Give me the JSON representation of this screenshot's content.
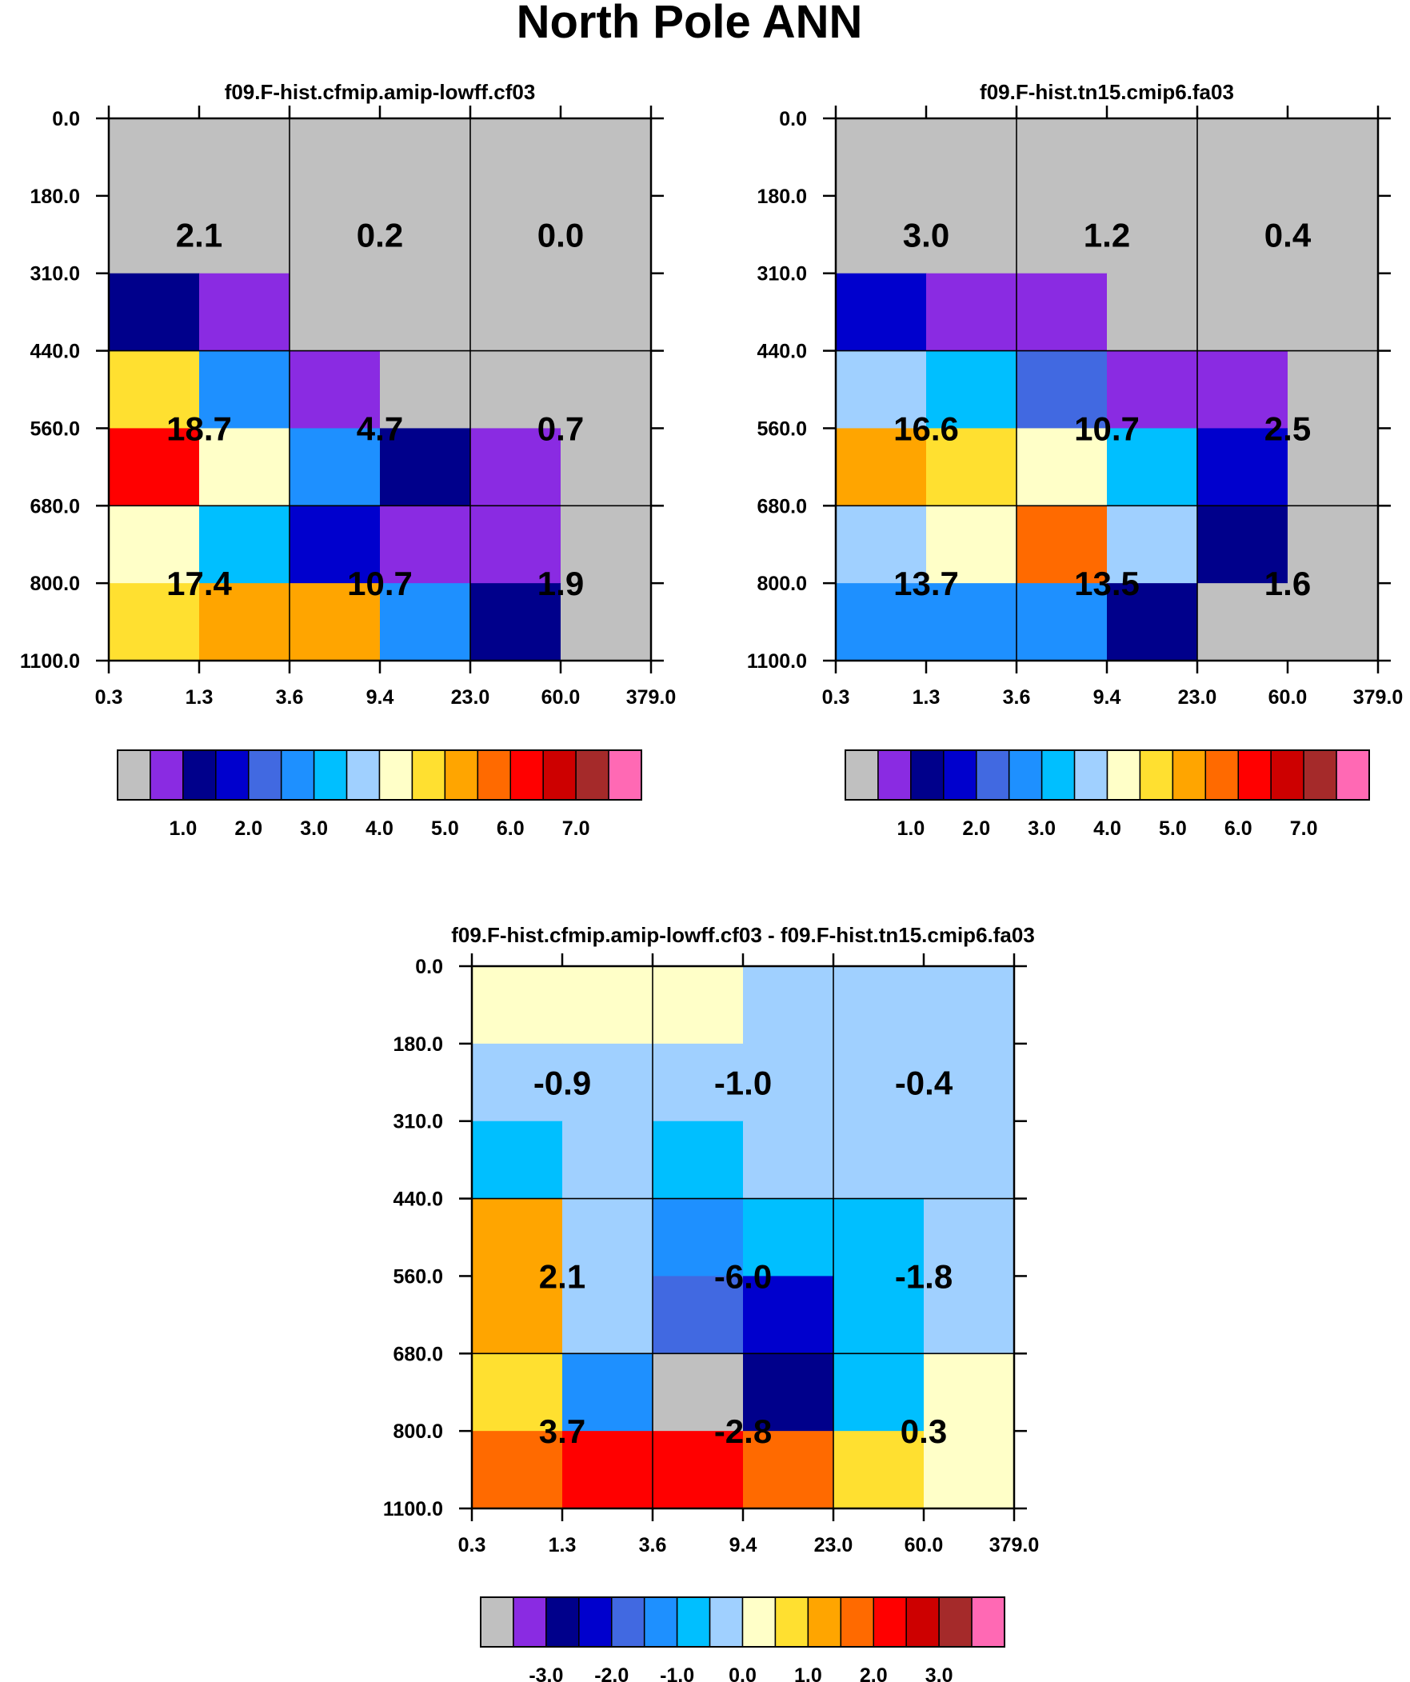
{
  "title": "North Pole ANN",
  "colors": [
    "#c0c0c0",
    "#8a2be2",
    "#00008b",
    "#0000cd",
    "#4169e1",
    "#1e90ff",
    "#00bfff",
    "#a0d0ff",
    "#ffffc8",
    "#ffe030",
    "#ffa500",
    "#ff6a00",
    "#ff0000",
    "#cd0000",
    "#a52a2a",
    "#ff69b4"
  ],
  "chart_data": [
    {
      "type": "heatmap",
      "title": "f09.F-hist.cfmip.amip-lowff.cf03",
      "x_ticks": [
        "0.3",
        "1.3",
        "3.6",
        "9.4",
        "23.0",
        "60.0",
        "379.0"
      ],
      "y_ticks": [
        "0.0",
        "180.0",
        "310.0",
        "440.0",
        "560.0",
        "680.0",
        "800.0",
        "1100.0"
      ],
      "cell_color_index": [
        [
          0,
          0,
          0,
          0,
          0,
          0
        ],
        [
          0,
          0,
          0,
          0,
          0,
          0
        ],
        [
          2,
          1,
          0,
          0,
          0,
          0
        ],
        [
          9,
          5,
          1,
          0,
          0,
          0
        ],
        [
          12,
          8,
          5,
          2,
          1,
          0
        ],
        [
          8,
          6,
          3,
          1,
          1,
          0
        ],
        [
          9,
          10,
          10,
          5,
          2,
          0
        ]
      ],
      "box_values": [
        [
          "2.1",
          "0.2",
          "0.0"
        ],
        [
          "18.7",
          "4.7",
          "0.7"
        ],
        [
          "17.4",
          "10.7",
          "1.9"
        ]
      ],
      "colorbar_labels": [
        "1.0",
        "2.0",
        "3.0",
        "4.0",
        "5.0",
        "6.0",
        "7.0"
      ]
    },
    {
      "type": "heatmap",
      "title": "f09.F-hist.tn15.cmip6.fa03",
      "x_ticks": [
        "0.3",
        "1.3",
        "3.6",
        "9.4",
        "23.0",
        "60.0",
        "379.0"
      ],
      "y_ticks": [
        "0.0",
        "180.0",
        "310.0",
        "440.0",
        "560.0",
        "680.0",
        "800.0",
        "1100.0"
      ],
      "cell_color_index": [
        [
          0,
          0,
          0,
          0,
          0,
          0
        ],
        [
          0,
          0,
          0,
          0,
          0,
          0
        ],
        [
          3,
          1,
          1,
          0,
          0,
          0
        ],
        [
          7,
          6,
          4,
          1,
          1,
          0
        ],
        [
          10,
          9,
          8,
          6,
          3,
          0
        ],
        [
          7,
          8,
          11,
          7,
          2,
          0
        ],
        [
          5,
          5,
          5,
          2,
          0,
          0
        ]
      ],
      "box_values": [
        [
          "3.0",
          "1.2",
          "0.4"
        ],
        [
          "16.6",
          "10.7",
          "2.5"
        ],
        [
          "13.7",
          "13.5",
          "1.6"
        ]
      ],
      "colorbar_labels": [
        "1.0",
        "2.0",
        "3.0",
        "4.0",
        "5.0",
        "6.0",
        "7.0"
      ]
    },
    {
      "type": "heatmap",
      "title": "f09.F-hist.cfmip.amip-lowff.cf03 - f09.F-hist.tn15.cmip6.fa03",
      "x_ticks": [
        "0.3",
        "1.3",
        "3.6",
        "9.4",
        "23.0",
        "60.0",
        "379.0"
      ],
      "y_ticks": [
        "0.0",
        "180.0",
        "310.0",
        "440.0",
        "560.0",
        "680.0",
        "800.0",
        "1100.0"
      ],
      "cell_color_index": [
        [
          8,
          8,
          8,
          7,
          7,
          7
        ],
        [
          7,
          7,
          7,
          7,
          7,
          7
        ],
        [
          6,
          7,
          6,
          7,
          7,
          7
        ],
        [
          10,
          7,
          5,
          6,
          6,
          7
        ],
        [
          10,
          7,
          4,
          3,
          6,
          7
        ],
        [
          9,
          5,
          0,
          2,
          6,
          8
        ],
        [
          11,
          12,
          12,
          11,
          9,
          8
        ]
      ],
      "box_values": [
        [
          "-0.9",
          "-1.0",
          "-0.4"
        ],
        [
          "2.1",
          "-6.0",
          "-1.8"
        ],
        [
          "3.7",
          "-2.8",
          "0.3"
        ]
      ],
      "colorbar_labels": [
        "-3.0",
        "-2.0",
        "-1.0",
        "0.0",
        "1.0",
        "2.0",
        "3.0"
      ]
    }
  ]
}
